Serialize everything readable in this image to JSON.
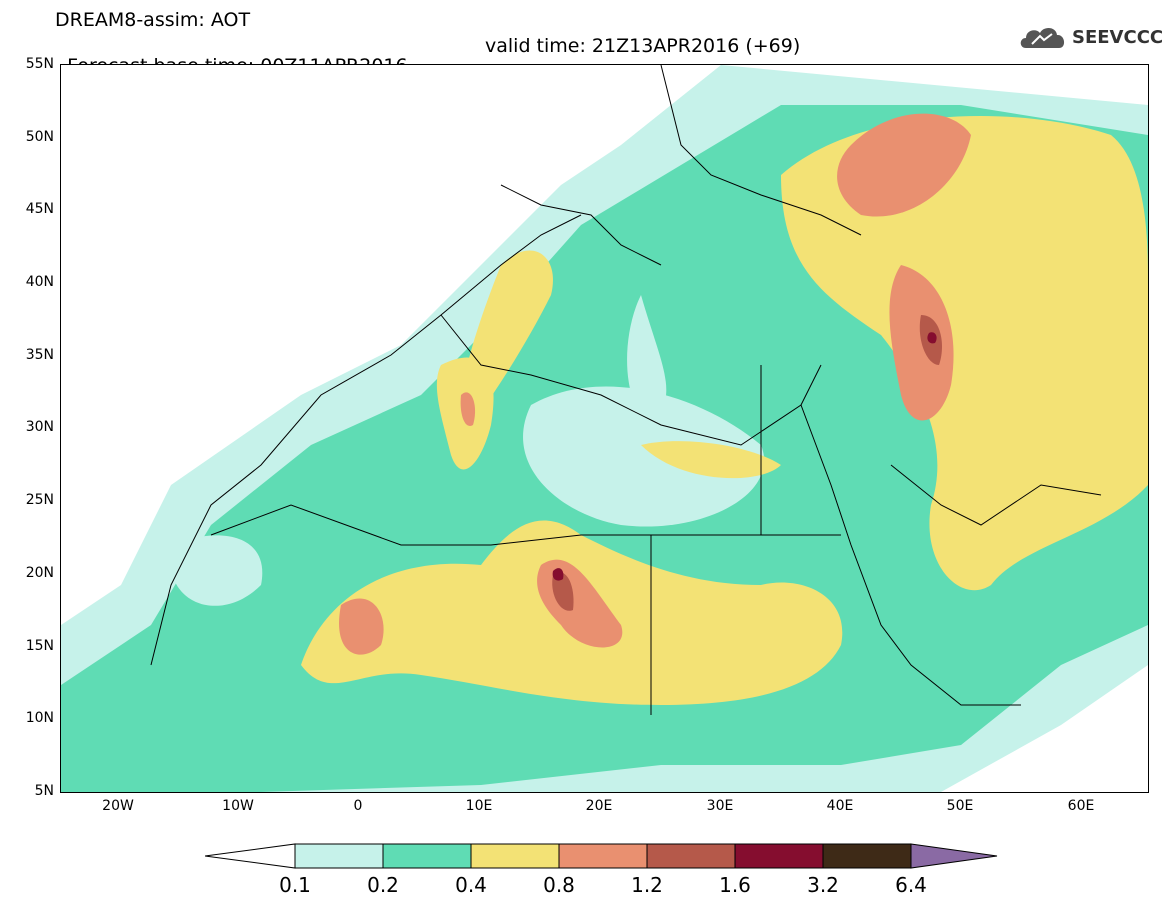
{
  "header": {
    "title": "DREAM8-assim: AOT",
    "base_time": "Forecast base time: 00Z11APR2016",
    "valid_time": "valid time: 21Z13APR2016 (+69)",
    "logo_text": "SEEVCCC",
    "logo_icon": "cloud-icon"
  },
  "map": {
    "projection": "lat-lon",
    "lon_range": [
      -25,
      65
    ],
    "lat_range": [
      5,
      55
    ],
    "lat_labels": [
      "55N",
      "50N",
      "45N",
      "40N",
      "35N",
      "30N",
      "25N",
      "20N",
      "15N",
      "10N",
      "5N"
    ],
    "lon_labels": [
      "20W",
      "10W",
      "0",
      "10E",
      "20E",
      "30E",
      "40E",
      "50E",
      "60E"
    ],
    "colors": {
      "c0_1": "#c6f2ea",
      "c0_2": "#5fdcb4",
      "c0_4": "#f3e275",
      "c0_8": "#e99070",
      "c1_2": "#b5594a",
      "c1_6": "#850d2f",
      "c3_2": "#3e2a17",
      "c6_4": "#8a6aa4"
    }
  },
  "colorbar": {
    "labels": [
      "0.1",
      "0.2",
      "0.4",
      "0.8",
      "1.2",
      "1.6",
      "3.2",
      "6.4"
    ]
  }
}
